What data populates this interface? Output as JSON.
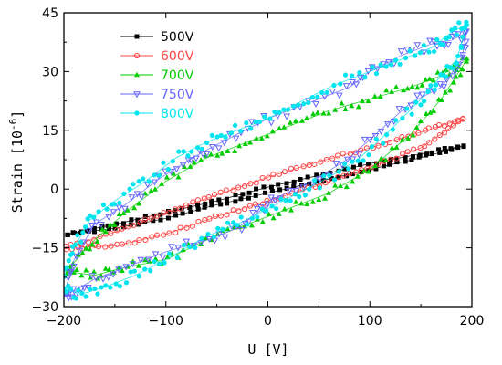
{
  "chart_data": {
    "type": "scatter",
    "xlabel": "U [V]",
    "ylabel_main": "Strain [10",
    "ylabel_exp": "-6",
    "ylabel_close": "]",
    "xlim": [
      -200,
      200
    ],
    "ylim": [
      -30,
      45
    ],
    "x_ticks": [
      -200,
      -100,
      0,
      100,
      200
    ],
    "y_ticks": [
      -30,
      -15,
      0,
      15,
      30,
      45
    ],
    "x_tick_labels": [
      "−200",
      "−100",
      "0",
      "100",
      "200"
    ],
    "y_tick_labels": [
      "−30",
      "−15",
      "0",
      "15",
      "30",
      "45"
    ],
    "legend_position": "top-left",
    "series": [
      {
        "name": "500V",
        "color": "#000000",
        "marker": "square-filled",
        "upper": [
          [
            -197,
            -11.5
          ],
          [
            -150,
            -9
          ],
          [
            -100,
            -6
          ],
          [
            -50,
            -3
          ],
          [
            0,
            0.5
          ],
          [
            50,
            3.5
          ],
          [
            100,
            6.5
          ],
          [
            150,
            9
          ],
          [
            192,
            11
          ]
        ],
        "lower": [
          [
            192,
            11
          ],
          [
            150,
            8
          ],
          [
            100,
            5
          ],
          [
            50,
            2
          ],
          [
            0,
            -1
          ],
          [
            -50,
            -4
          ],
          [
            -100,
            -7.5
          ],
          [
            -150,
            -10
          ],
          [
            -197,
            -11.5
          ]
        ]
      },
      {
        "name": "600V",
        "color": "#ff4444",
        "marker": "circle-open",
        "upper": [
          [
            -198,
            -15
          ],
          [
            -150,
            -11
          ],
          [
            -100,
            -6
          ],
          [
            -50,
            -1.5
          ],
          [
            0,
            3
          ],
          [
            50,
            7
          ],
          [
            100,
            10.5
          ],
          [
            150,
            14.5
          ],
          [
            192,
            18
          ]
        ],
        "lower": [
          [
            192,
            18
          ],
          [
            150,
            10.5
          ],
          [
            100,
            5.5
          ],
          [
            50,
            1
          ],
          [
            0,
            -3
          ],
          [
            -50,
            -7
          ],
          [
            -100,
            -11.5
          ],
          [
            -150,
            -14.5
          ],
          [
            -198,
            -15
          ]
        ]
      },
      {
        "name": "700V",
        "color": "#00cc00",
        "marker": "triangle-filled",
        "upper": [
          [
            -198,
            -21
          ],
          [
            -170,
            -13
          ],
          [
            -140,
            -6
          ],
          [
            -100,
            2
          ],
          [
            -60,
            8
          ],
          [
            -20,
            12
          ],
          [
            20,
            16
          ],
          [
            60,
            20
          ],
          [
            100,
            23
          ],
          [
            140,
            26
          ],
          [
            170,
            29
          ],
          [
            195,
            33
          ]
        ],
        "lower": [
          [
            195,
            33
          ],
          [
            170,
            23
          ],
          [
            140,
            14
          ],
          [
            100,
            5
          ],
          [
            60,
            -1
          ],
          [
            20,
            -5
          ],
          [
            -20,
            -9
          ],
          [
            -60,
            -13
          ],
          [
            -100,
            -18
          ],
          [
            -140,
            -20
          ],
          [
            -170,
            -22
          ],
          [
            -198,
            -21
          ]
        ]
      },
      {
        "name": "750V",
        "color": "#6666ff",
        "marker": "triangle-down-open",
        "upper": [
          [
            -200,
            -27
          ],
          [
            -190,
            -18
          ],
          [
            -170,
            -9
          ],
          [
            -140,
            -4
          ],
          [
            -110,
            2
          ],
          [
            -80,
            7
          ],
          [
            -60,
            10
          ],
          [
            -30,
            14
          ],
          [
            0,
            18
          ],
          [
            40,
            22
          ],
          [
            80,
            26
          ],
          [
            100,
            30
          ],
          [
            130,
            34
          ],
          [
            160,
            37
          ],
          [
            180,
            38
          ],
          [
            195,
            40
          ]
        ],
        "lower": [
          [
            195,
            40
          ],
          [
            190,
            33
          ],
          [
            170,
            26
          ],
          [
            140,
            22
          ],
          [
            110,
            15
          ],
          [
            80,
            8
          ],
          [
            50,
            3
          ],
          [
            10,
            -2
          ],
          [
            -10,
            -6
          ],
          [
            -30,
            -10
          ],
          [
            -60,
            -13
          ],
          [
            -100,
            -16
          ],
          [
            -140,
            -20
          ],
          [
            -170,
            -23
          ],
          [
            -190,
            -26
          ],
          [
            -200,
            -27
          ]
        ]
      },
      {
        "name": "800V",
        "color": "#00e5ee",
        "marker": "circle-filled",
        "upper": [
          [
            -200,
            -22
          ],
          [
            -190,
            -15
          ],
          [
            -175,
            -8
          ],
          [
            -150,
            -3
          ],
          [
            -120,
            2
          ],
          [
            -90,
            8
          ],
          [
            -60,
            12
          ],
          [
            -30,
            15
          ],
          [
            0,
            18
          ],
          [
            30,
            22
          ],
          [
            60,
            26
          ],
          [
            100,
            30
          ],
          [
            130,
            33
          ],
          [
            160,
            36
          ],
          [
            180,
            40
          ],
          [
            195,
            42
          ]
        ],
        "lower": [
          [
            195,
            42
          ],
          [
            185,
            33
          ],
          [
            170,
            29
          ],
          [
            150,
            23
          ],
          [
            120,
            15
          ],
          [
            90,
            8
          ],
          [
            60,
            3
          ],
          [
            30,
            -1
          ],
          [
            0,
            -5
          ],
          [
            -30,
            -9
          ],
          [
            -60,
            -12
          ],
          [
            -100,
            -18
          ],
          [
            -130,
            -22
          ],
          [
            -160,
            -25
          ],
          [
            -185,
            -27
          ],
          [
            -200,
            -25
          ]
        ]
      }
    ]
  }
}
